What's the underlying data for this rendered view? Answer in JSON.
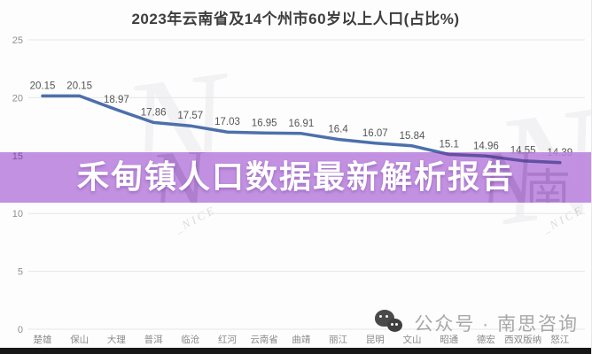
{
  "title": "2023年云南省及14个州市60岁以上人口(占比%)",
  "banner": {
    "text": "禾甸镇人口数据最新解析报告",
    "background_color": "#b981dc",
    "text_color": "#ffffff"
  },
  "footer_watermark": {
    "icon": "wechat-icon",
    "label": "公众号 · 南思咨询"
  },
  "background_watermark": {
    "script_letter": "N",
    "nice_text": "NICE",
    "cjk_char": "南"
  },
  "chart_data": {
    "type": "line",
    "title": "2023年云南省及14个州市60岁以上人口(占比%)",
    "categories": [
      "楚雄",
      "保山",
      "大理",
      "普洱",
      "临沧",
      "红河",
      "云南省",
      "曲靖",
      "丽江",
      "昆明",
      "文山",
      "昭通",
      "德宏",
      "西双版纳",
      "怒江"
    ],
    "values": [
      20.15,
      20.15,
      18.97,
      17.86,
      17.57,
      17.03,
      16.95,
      16.91,
      16.4,
      16.07,
      15.84,
      15.1,
      14.96,
      14.55,
      14.39
    ],
    "data_labels": [
      "20.15",
      "20.15",
      "18.97",
      "17.86",
      "17.57",
      "17.03",
      "16.95",
      "16.91",
      "16.4",
      "16.07",
      "15.84",
      "15.1",
      "14.96",
      "14.55",
      "14.39"
    ],
    "xlabel": "",
    "ylabel": "",
    "ylim": [
      0,
      25
    ],
    "yticks": [
      0,
      5,
      10,
      15,
      20,
      25
    ],
    "grid": true,
    "legend": "none",
    "colors": {
      "line": "#4c70ab",
      "line_through_banner": "#5a4b9d",
      "grid": "#e6e6e6",
      "data_label": "#555555",
      "axis_label": "#8a8a8a"
    }
  }
}
